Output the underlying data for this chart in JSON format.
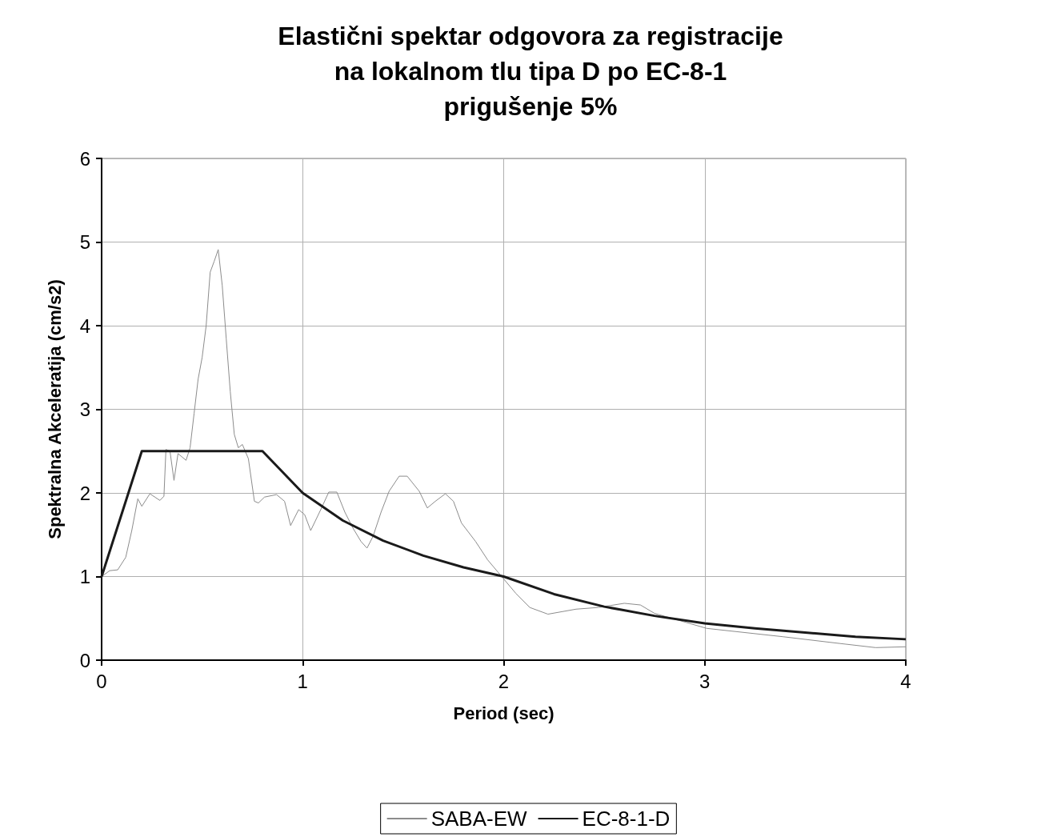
{
  "chart_data": {
    "type": "line",
    "title": "Elastični spektar odgovora za registracije\nna lokalnom tlu tipa D po EC-8-1\nprigušenje 5%",
    "xlabel": "Period (sec)",
    "ylabel": "Spektralna Akceleratija (cm/s2)",
    "xlim": [
      0,
      4
    ],
    "xticks": [
      0,
      1,
      2,
      3,
      4
    ],
    "ylim": [
      0,
      6
    ],
    "yticks": [
      0,
      1,
      2,
      3,
      4,
      5,
      6
    ],
    "grid": true,
    "legend": "bottom",
    "marker": "none",
    "line_style": "solid",
    "series": [
      {
        "name": "SABA-EW",
        "color": "#8c8c8c",
        "x": [
          0,
          0.04,
          0.08,
          0.12,
          0.15,
          0.18,
          0.2,
          0.24,
          0.29,
          0.31,
          0.32,
          0.34,
          0.36,
          0.38,
          0.42,
          0.44,
          0.46,
          0.48,
          0.5,
          0.52,
          0.54,
          0.56,
          0.58,
          0.6,
          0.62,
          0.64,
          0.66,
          0.68,
          0.7,
          0.73,
          0.76,
          0.78,
          0.81,
          0.87,
          0.91,
          0.94,
          0.98,
          1.01,
          1.04,
          1.09,
          1.13,
          1.17,
          1.21,
          1.25,
          1.29,
          1.32,
          1.35,
          1.39,
          1.43,
          1.48,
          1.52,
          1.58,
          1.62,
          1.66,
          1.71,
          1.75,
          1.79,
          1.86,
          1.92,
          1.99,
          2.06,
          2.13,
          2.22,
          2.36,
          2.47,
          2.6,
          2.68,
          2.75,
          3.01,
          3.39,
          3.67,
          3.85,
          4
        ],
        "values": [
          1,
          1.07,
          1.08,
          1.23,
          1.55,
          1.93,
          1.84,
          1.99,
          1.91,
          1.96,
          2.52,
          2.5,
          2.15,
          2.47,
          2.39,
          2.54,
          2.95,
          3.36,
          3.62,
          4,
          4.64,
          4.77,
          4.91,
          4.48,
          3.84,
          3.21,
          2.7,
          2.54,
          2.58,
          2.41,
          1.9,
          1.88,
          1.95,
          1.98,
          1.9,
          1.61,
          1.8,
          1.74,
          1.55,
          1.8,
          2.01,
          2.01,
          1.77,
          1.58,
          1.42,
          1.34,
          1.48,
          1.77,
          2.02,
          2.2,
          2.2,
          2.02,
          1.82,
          1.9,
          1.99,
          1.9,
          1.64,
          1.42,
          1.2,
          1,
          0.8,
          0.63,
          0.55,
          0.61,
          0.63,
          0.68,
          0.66,
          0.56,
          0.38,
          0.28,
          0.2,
          0.15,
          0.16
        ]
      },
      {
        "name": "EC-8-1-D",
        "color": "#1a1a1a",
        "x": [
          0,
          0.2,
          0.8,
          1,
          1.2,
          1.4,
          1.6,
          1.8,
          2,
          2.25,
          2.5,
          2.75,
          3,
          3.25,
          3.5,
          3.75,
          4
        ],
        "values": [
          1,
          2.5,
          2.5,
          2,
          1.67,
          1.43,
          1.25,
          1.11,
          1,
          0.79,
          0.64,
          0.53,
          0.44,
          0.38,
          0.33,
          0.28,
          0.25
        ]
      }
    ]
  }
}
